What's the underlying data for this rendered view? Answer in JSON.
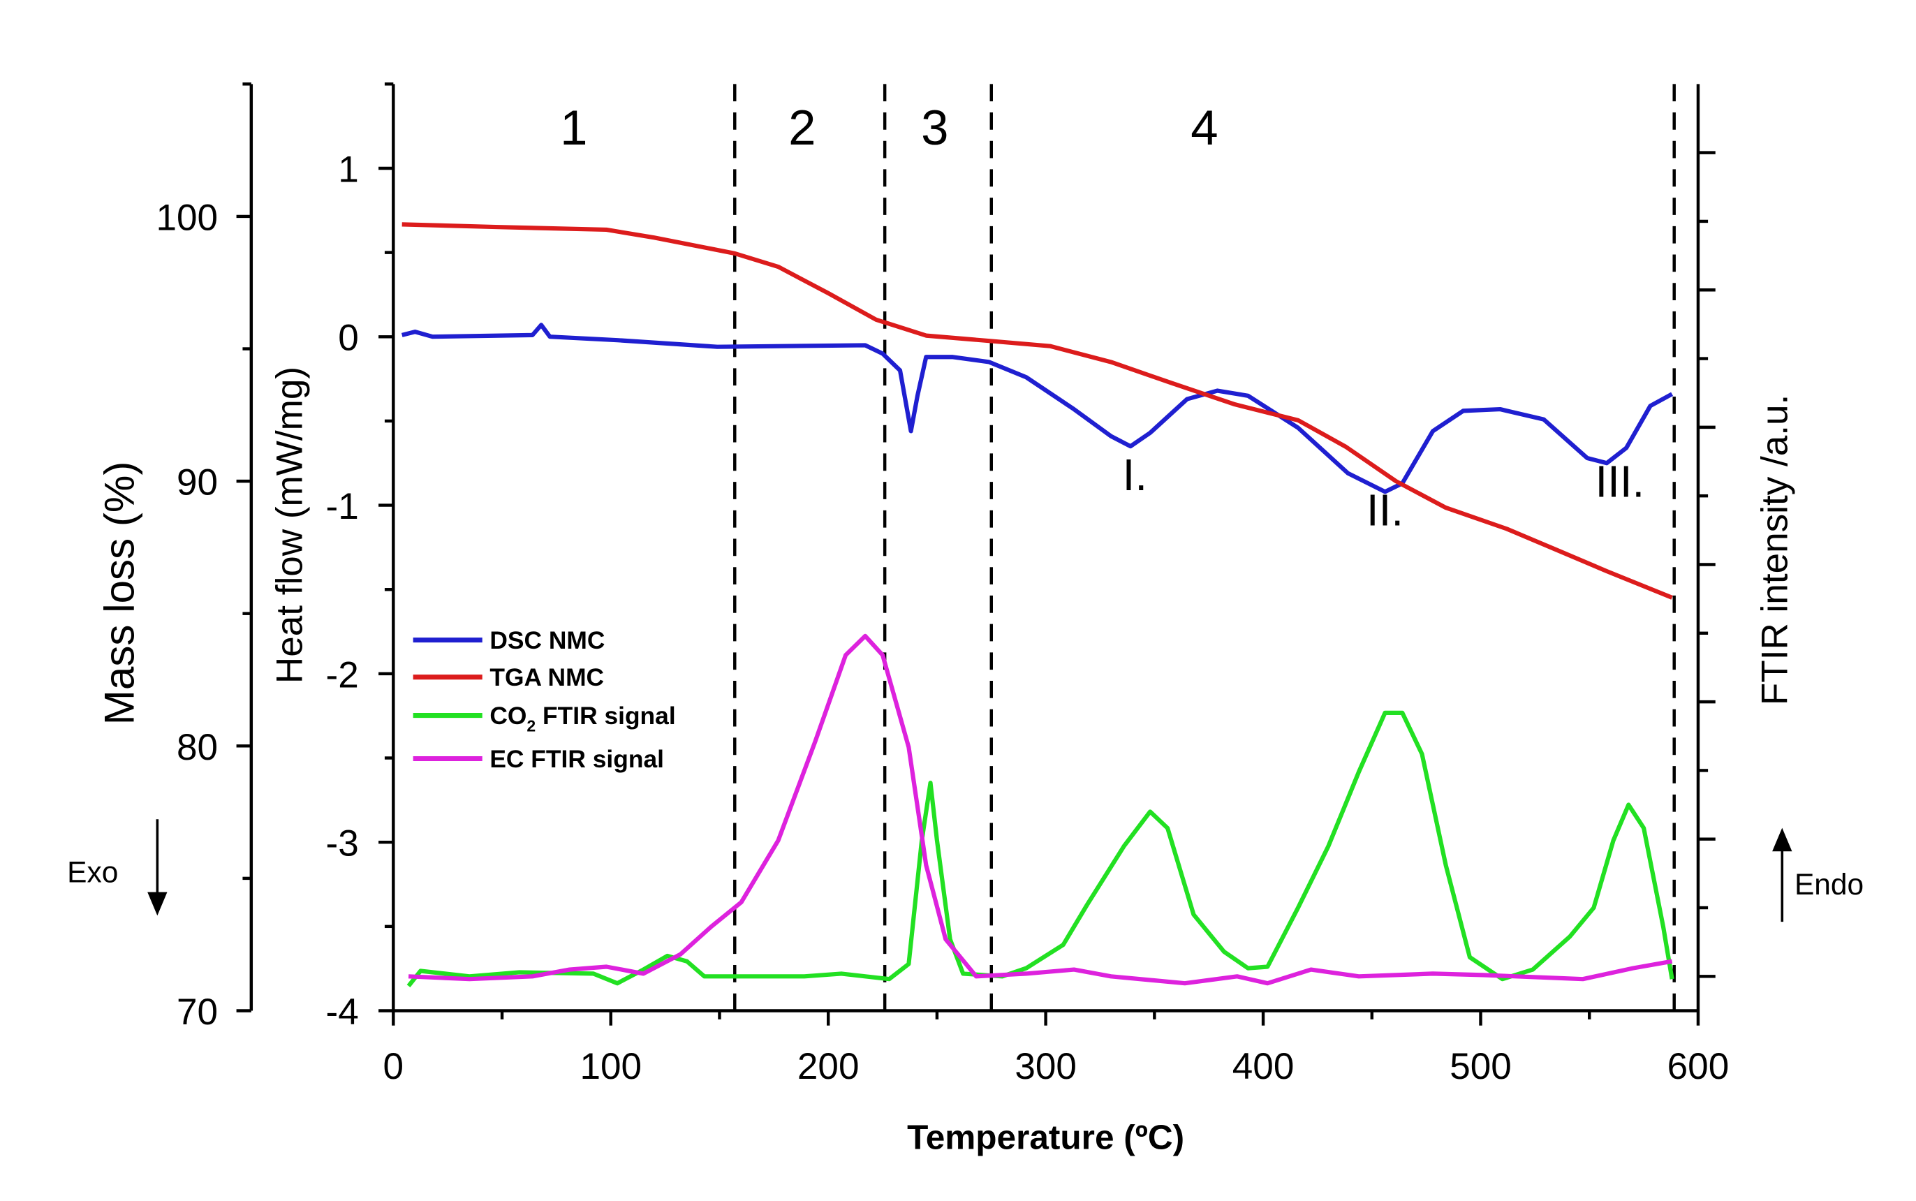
{
  "chart_data": {
    "type": "line",
    "xlabel": "Temperature (ºC)",
    "xlim": [
      0,
      600
    ],
    "xticks": [
      0,
      100,
      200,
      300,
      400,
      500,
      600
    ],
    "axes": {
      "mass": {
        "label": "Mass loss (%)",
        "lim": [
          70,
          105
        ],
        "ticks": [
          70,
          80,
          90,
          100
        ]
      },
      "heat": {
        "label": "Heat flow (mW/mg)",
        "lim": [
          -4,
          1.5
        ],
        "ticks": [
          -4,
          -3,
          -2,
          -1,
          0,
          1
        ]
      },
      "ftir": {
        "label": "FTIR intensity /a.u.",
        "lim": [
          -0.25,
          6.5
        ],
        "ticks": [
          0,
          1,
          2,
          3,
          4,
          5,
          6
        ]
      }
    },
    "series": [
      {
        "name": "DSC NMC",
        "axis": "heat",
        "color": "#1f1fd0",
        "x": [
          4,
          10,
          18,
          64,
          68,
          72,
          103,
          149,
          217,
          225,
          233,
          238,
          241,
          245,
          257,
          274,
          291,
          313,
          330,
          339,
          348,
          365,
          379,
          393,
          416,
          439,
          456,
          464,
          478,
          492,
          509,
          529,
          549,
          558,
          567,
          578,
          588
        ],
        "y": [
          0.01,
          0.03,
          0,
          0.01,
          0.07,
          0,
          -0.02,
          -0.06,
          -0.05,
          -0.1,
          -0.2,
          -0.56,
          -0.35,
          -0.12,
          -0.12,
          -0.15,
          -0.24,
          -0.43,
          -0.59,
          -0.65,
          -0.57,
          -0.37,
          -0.32,
          -0.35,
          -0.54,
          -0.81,
          -0.92,
          -0.87,
          -0.56,
          -0.44,
          -0.43,
          -0.49,
          -0.72,
          -0.75,
          -0.66,
          -0.41,
          -0.34
        ]
      },
      {
        "name": "TGA NMC",
        "axis": "mass",
        "color": "#dc1c1c",
        "x": [
          4,
          47,
          98,
          120,
          157,
          177,
          200,
          222,
          245,
          274,
          302,
          330,
          358,
          387,
          416,
          438,
          461,
          484,
          512,
          535,
          558,
          588
        ],
        "y": [
          99.7,
          99.6,
          99.5,
          99.2,
          98.6,
          98.1,
          97.1,
          96.1,
          95.5,
          95.3,
          95.1,
          94.5,
          93.7,
          92.9,
          92.3,
          91.3,
          90.0,
          89.0,
          88.2,
          87.4,
          86.6,
          85.6
        ]
      },
      {
        "name": "CO2 FTIR signal",
        "name_main": "CO",
        "name_sub": "2",
        "name_rest": " FTIR signal",
        "axis": "ftir",
        "color": "#22e022",
        "x": [
          7,
          12.5,
          35,
          58,
          92,
          103,
          115,
          126,
          135,
          143,
          189,
          206,
          228,
          237,
          243,
          247,
          250,
          256,
          262,
          280,
          291,
          308,
          319,
          336,
          348,
          356,
          368,
          382,
          393,
          402,
          416,
          430,
          444,
          456,
          464,
          473,
          484,
          495,
          510,
          524,
          541,
          552,
          561,
          568,
          575,
          584,
          588
        ],
        "y": [
          -0.07,
          0.04,
          0,
          0.03,
          0.02,
          -0.05,
          0.05,
          0.15,
          0.11,
          0,
          0,
          0.02,
          -0.02,
          0.09,
          0.99,
          1.41,
          0.99,
          0.27,
          0.02,
          0,
          0.06,
          0.23,
          0.52,
          0.95,
          1.2,
          1.08,
          0.45,
          0.18,
          0.06,
          0.07,
          0.5,
          0.95,
          1.49,
          1.92,
          1.92,
          1.62,
          0.81,
          0.14,
          -0.02,
          0.05,
          0.29,
          0.5,
          0.99,
          1.25,
          1.08,
          0.36,
          -0.02
        ]
      },
      {
        "name": "EC FTIR signal",
        "axis": "ftir",
        "color": "#dd22dd",
        "x": [
          7,
          35,
          64,
          81,
          98,
          115,
          132,
          146,
          160,
          177,
          194,
          208,
          217,
          225,
          237,
          245,
          254,
          268,
          291,
          313,
          330,
          364,
          388,
          402,
          422,
          444,
          478,
          501,
          547,
          570,
          588
        ],
        "y": [
          0,
          -0.02,
          0,
          0.05,
          0.07,
          0.02,
          0.16,
          0.36,
          0.54,
          0.99,
          1.71,
          2.34,
          2.48,
          2.34,
          1.67,
          0.81,
          0.27,
          0,
          0.02,
          0.05,
          0,
          -0.05,
          0,
          -0.05,
          0.05,
          0,
          0.02,
          0.01,
          -0.02,
          0.06,
          0.11
        ]
      }
    ],
    "region_boundaries": [
      157,
      226,
      275,
      589
    ],
    "regions": [
      {
        "label": "1",
        "x": 83
      },
      {
        "label": "2",
        "x": 188
      },
      {
        "label": "3",
        "x": 249
      },
      {
        "label": "4",
        "x": 373
      }
    ],
    "peak_annotations": [
      {
        "label": "I.",
        "x": 341,
        "heat": -0.91
      },
      {
        "label": "II.",
        "x": 456,
        "heat": -1.12
      },
      {
        "label": "III.",
        "x": 564,
        "heat": -0.95
      }
    ],
    "exo_label": "Exo",
    "endo_label": "Endo",
    "legend_position": "middle-left"
  }
}
